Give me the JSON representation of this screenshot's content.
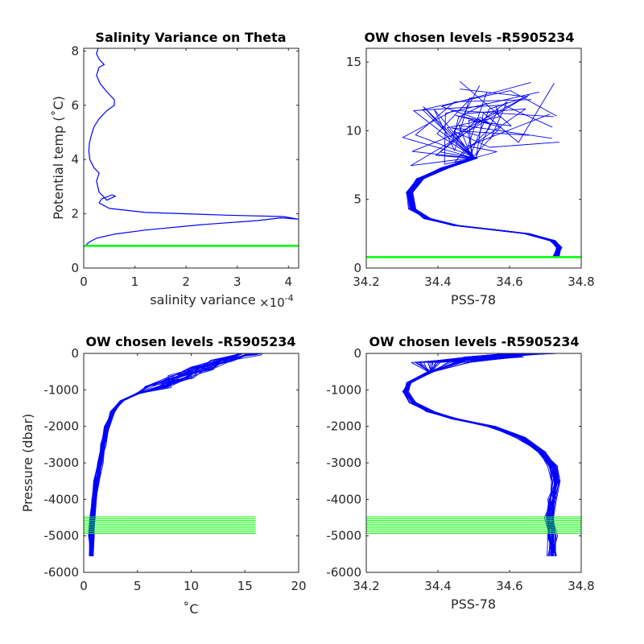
{
  "colors": {
    "profile": "#0000ff",
    "chosen_level": "#00ff00",
    "axis": "#262626",
    "background": "#ffffff"
  },
  "chart_data": [
    {
      "type": "line",
      "title": "Salinity Variance on Theta",
      "xlabel": "salinity variance",
      "x_exponent_label": "×10",
      "x_exponent_sup": "-4",
      "ylabel": "Potential temp (˚C)",
      "xlim": [
        0,
        4.2
      ],
      "ylim": [
        0,
        8.1
      ],
      "xticks": [
        0,
        1,
        2,
        3,
        4
      ],
      "yticks": [
        0,
        2,
        4,
        6,
        8
      ],
      "grid": false,
      "series": [
        {
          "x": [
            0.0,
            0.03,
            0.1,
            0.25,
            0.6,
            1.2,
            2.3,
            3.4,
            3.85,
            4.2,
            3.9,
            2.8,
            1.2,
            0.5,
            0.3,
            0.35,
            0.55,
            0.62,
            0.45,
            0.3,
            0.25,
            0.3,
            0.2,
            0.12,
            0.1,
            0.11,
            0.15,
            0.2,
            0.3,
            0.45,
            0.6,
            0.6,
            0.45,
            0.32,
            0.25,
            0.3,
            0.4,
            0.3,
            0.25,
            0.28
          ],
          "y": [
            0.78,
            0.82,
            0.95,
            1.1,
            1.25,
            1.4,
            1.6,
            1.75,
            1.85,
            1.8,
            1.9,
            1.95,
            2.05,
            2.2,
            2.4,
            2.55,
            2.7,
            2.65,
            2.5,
            2.8,
            3.2,
            3.5,
            3.7,
            4.0,
            4.3,
            4.6,
            4.9,
            5.2,
            5.5,
            5.8,
            6.0,
            6.2,
            6.5,
            6.8,
            7.1,
            7.4,
            7.5,
            7.7,
            7.9,
            8.1
          ]
        }
      ],
      "chosen_levels": [
        0.82
      ]
    },
    {
      "type": "line",
      "title": "OW chosen levels -R5905234",
      "xlabel": "PSS-78",
      "ylabel": "",
      "xlim": [
        34.2,
        34.8
      ],
      "ylim": [
        0,
        16
      ],
      "xticks": [
        34.2,
        34.4,
        34.6,
        34.8
      ],
      "ytick_labels": [
        "0",
        "5",
        "10",
        "15"
      ],
      "yticks": [
        0,
        5,
        10,
        15
      ],
      "grid": false,
      "series": [
        {
          "x": [
            34.73,
            34.74,
            34.72,
            34.65,
            34.55,
            34.45,
            34.37,
            34.33,
            34.32,
            34.35,
            34.42,
            34.5,
            34.58,
            34.66,
            34.74
          ],
          "y": [
            0.8,
            1.5,
            2.0,
            2.5,
            2.8,
            3.1,
            3.6,
            4.3,
            5.5,
            6.5,
            7.3,
            8.0,
            8.8,
            9.8,
            10.5
          ]
        }
      ],
      "chosen_levels": [
        0.8
      ]
    },
    {
      "type": "line",
      "title": "OW chosen levels -R5905234",
      "xlabel": "˚C",
      "ylabel": "Pressure (dbar)",
      "xlim": [
        0,
        20
      ],
      "ylim": [
        -6000,
        0
      ],
      "xticks": [
        0,
        5,
        10,
        15,
        20
      ],
      "yticks": [
        -6000,
        -5000,
        -4000,
        -3000,
        -2000,
        -1000,
        0
      ],
      "grid": false,
      "series": [
        {
          "x": [
            0.7,
            0.75,
            0.85,
            1.0,
            1.2,
            1.5,
            1.8,
            2.2,
            2.7,
            3.5,
            5.0,
            7.0,
            9.0,
            11.0,
            13.0,
            15.5
          ],
          "y": [
            -5550,
            -5000,
            -4500,
            -4000,
            -3500,
            -3000,
            -2500,
            -2000,
            -1600,
            -1300,
            -1100,
            -900,
            -650,
            -400,
            -180,
            0
          ]
        }
      ],
      "chosen_levels": [
        -4480,
        -4530,
        -4580,
        -4630,
        -4680,
        -4730,
        -4780,
        -4830,
        -4880,
        -4930
      ]
    },
    {
      "type": "line",
      "title": "OW chosen levels -R5905234",
      "xlabel": "PSS-78",
      "ylabel": "",
      "xlim": [
        34.2,
        34.8
      ],
      "ylim": [
        -6000,
        0
      ],
      "xticks": [
        34.2,
        34.4,
        34.6,
        34.8
      ],
      "yticks": [
        -6000,
        -5000,
        -4000,
        -3000,
        -2000,
        -1000,
        0
      ],
      "grid": false,
      "series": [
        {
          "x": [
            34.72,
            34.72,
            34.71,
            34.72,
            34.73,
            34.72,
            34.69,
            34.63,
            34.55,
            34.45,
            34.38,
            34.33,
            34.31,
            34.32,
            34.38,
            34.5,
            34.65,
            34.75
          ],
          "y": [
            -5550,
            -5000,
            -4500,
            -4000,
            -3500,
            -3100,
            -2700,
            -2300,
            -2000,
            -1800,
            -1600,
            -1350,
            -1050,
            -800,
            -500,
            -250,
            -100,
            0
          ]
        }
      ],
      "chosen_levels": [
        -4480,
        -4530,
        -4580,
        -4630,
        -4680,
        -4730,
        -4780,
        -4830,
        -4880,
        -4930
      ]
    }
  ]
}
